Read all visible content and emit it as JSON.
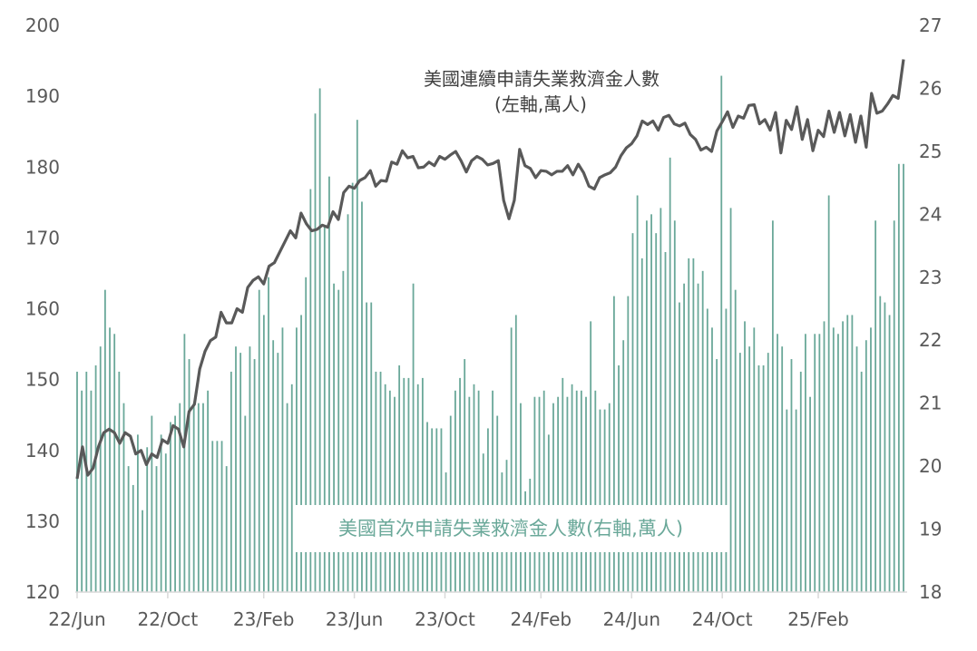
{
  "chart_data": {
    "type": "bar+line",
    "title": "",
    "x_labels": [
      "22/Jun",
      "22/Oct",
      "23/Feb",
      "23/Jun",
      "23/Oct",
      "24/Feb",
      "24/Jun",
      "24/Oct",
      "25/Feb"
    ],
    "y_left": {
      "min": 120,
      "max": 200,
      "ticks": [
        120,
        130,
        140,
        150,
        160,
        170,
        180,
        190,
        200
      ],
      "label": ""
    },
    "y_right": {
      "min": 18,
      "max": 27,
      "ticks": [
        18,
        19,
        20,
        21,
        22,
        23,
        24,
        25,
        26,
        27
      ],
      "label": ""
    },
    "annotations": {
      "line_label_1": "美國連續申請失業救濟金人數",
      "line_label_2": "(左軸,萬人)",
      "bar_label": "美國首次申請失業救濟金人數(右軸,萬人)"
    },
    "colors": {
      "bars": "#6aa899",
      "line": "#595959",
      "axis": "#d9d9d9"
    },
    "series": [
      {
        "name": "美國首次申請失業救濟金人數(右軸,萬人)",
        "axis": "right",
        "type": "bar",
        "values": [
          21.5,
          21.2,
          21.5,
          21.2,
          21.6,
          21.9,
          22.8,
          22.2,
          22.1,
          21.5,
          21.0,
          20.0,
          19.7,
          20.5,
          19.3,
          20.3,
          20.8,
          20.0,
          20.5,
          20.2,
          20.7,
          20.8,
          21.0,
          22.1,
          21.7,
          21.0,
          21.0,
          21.0,
          21.2,
          20.4,
          20.4,
          20.4,
          20.0,
          21.5,
          21.9,
          21.8,
          20.8,
          21.9,
          21.7,
          22.8,
          22.4,
          23.0,
          22.0,
          21.8,
          22.2,
          21.0,
          21.3,
          22.2,
          22.4,
          23.0,
          24.4,
          25.6,
          26.0,
          23.8,
          24.6,
          22.9,
          22.8,
          23.1,
          24.0,
          24.5,
          25.5,
          24.2,
          22.6,
          22.6,
          21.5,
          21.5,
          21.3,
          21.2,
          21.1,
          21.6,
          21.4,
          21.4,
          22.9,
          21.3,
          21.4,
          20.7,
          20.6,
          20.6,
          20.6,
          19.9,
          20.8,
          21.2,
          21.4,
          21.7,
          21.1,
          21.3,
          21.2,
          20.2,
          20.6,
          21.2,
          20.8,
          19.9,
          20.1,
          22.2,
          22.4,
          21.0,
          19.6,
          19.8,
          21.1,
          21.1,
          21.2,
          20.5,
          21.0,
          21.1,
          21.4,
          21.1,
          21.3,
          21.2,
          21.2,
          21.1,
          22.3,
          21.2,
          20.9,
          20.9,
          21.0,
          22.7,
          21.6,
          22.0,
          22.7,
          23.7,
          24.3,
          23.3,
          23.9,
          24.0,
          23.7,
          24.1,
          23.4,
          24.9,
          23.9,
          22.6,
          22.9,
          23.3,
          23.3,
          22.9,
          23.1,
          22.5,
          22.2,
          21.7,
          26.2,
          22.5,
          24.1,
          22.8,
          21.8,
          22.3,
          21.9,
          22.2,
          21.6,
          21.6,
          21.8,
          23.9,
          22.1,
          21.9,
          20.9,
          21.7,
          20.9,
          21.5,
          22.1,
          21.1,
          22.1,
          22.1,
          22.3,
          24.3,
          22.2,
          22.1,
          22.3,
          22.4,
          22.4,
          21.9,
          21.5,
          22.0,
          22.2,
          23.9,
          22.7,
          22.6,
          22.4,
          23.9,
          24.8,
          24.8
        ]
      },
      {
        "name": "美國連續申請失業救濟金人數(左軸,萬人)",
        "axis": "left",
        "type": "line",
        "values": [
          136.0,
          140.5,
          136.5,
          137.5,
          140.5,
          142.5,
          143.0,
          142.5,
          141.0,
          142.5,
          142.0,
          139.5,
          140.0,
          138.0,
          139.5,
          139.0,
          141.5,
          141.0,
          143.5,
          143.0,
          140.5,
          145.5,
          146.5,
          151.5,
          154.0,
          155.5,
          156.0,
          159.5,
          158.0,
          158.0,
          160.0,
          159.5,
          163.0,
          164.0,
          164.5,
          163.5,
          166.0,
          166.5,
          168.0,
          169.5,
          171.0,
          170.0,
          173.5,
          172.0,
          171.0,
          171.2,
          171.8,
          171.5,
          173.7,
          172.6,
          176.4,
          177.3,
          177.0,
          178.1,
          178.5,
          179.5,
          177.3,
          178.1,
          178.0,
          180.7,
          180.4,
          182.3,
          181.3,
          181.5,
          179.9,
          180.0,
          180.7,
          180.2,
          181.5,
          181.1,
          181.7,
          182.2,
          180.9,
          179.3,
          180.9,
          181.5,
          181.1,
          180.3,
          180.5,
          180.9,
          175.3,
          172.7,
          175.3,
          182.5,
          180.2,
          179.8,
          178.5,
          179.5,
          179.4,
          178.9,
          179.4,
          179.4,
          180.2,
          178.9,
          180.4,
          179.2,
          177.3,
          176.9,
          178.5,
          178.9,
          179.2,
          180.0,
          181.6,
          182.7,
          183.3,
          184.4,
          186.5,
          186.0,
          186.5,
          185.2,
          187.0,
          187.3,
          186.1,
          185.8,
          186.2,
          184.6,
          183.9,
          182.4,
          182.8,
          182.2,
          185.1,
          186.4,
          187.8,
          185.6,
          187.2,
          186.9,
          188.7,
          188.8,
          186.1,
          186.7,
          185.2,
          187.7,
          182.0,
          186.6,
          185.3,
          188.5,
          183.9,
          186.7,
          182.3,
          185.2,
          184.3,
          187.9,
          184.9,
          187.7,
          184.4,
          187.4,
          183.5,
          187.2,
          182.8,
          190.4,
          187.6,
          187.9,
          188.9,
          190.1,
          189.7,
          195.2
        ]
      }
    ]
  }
}
